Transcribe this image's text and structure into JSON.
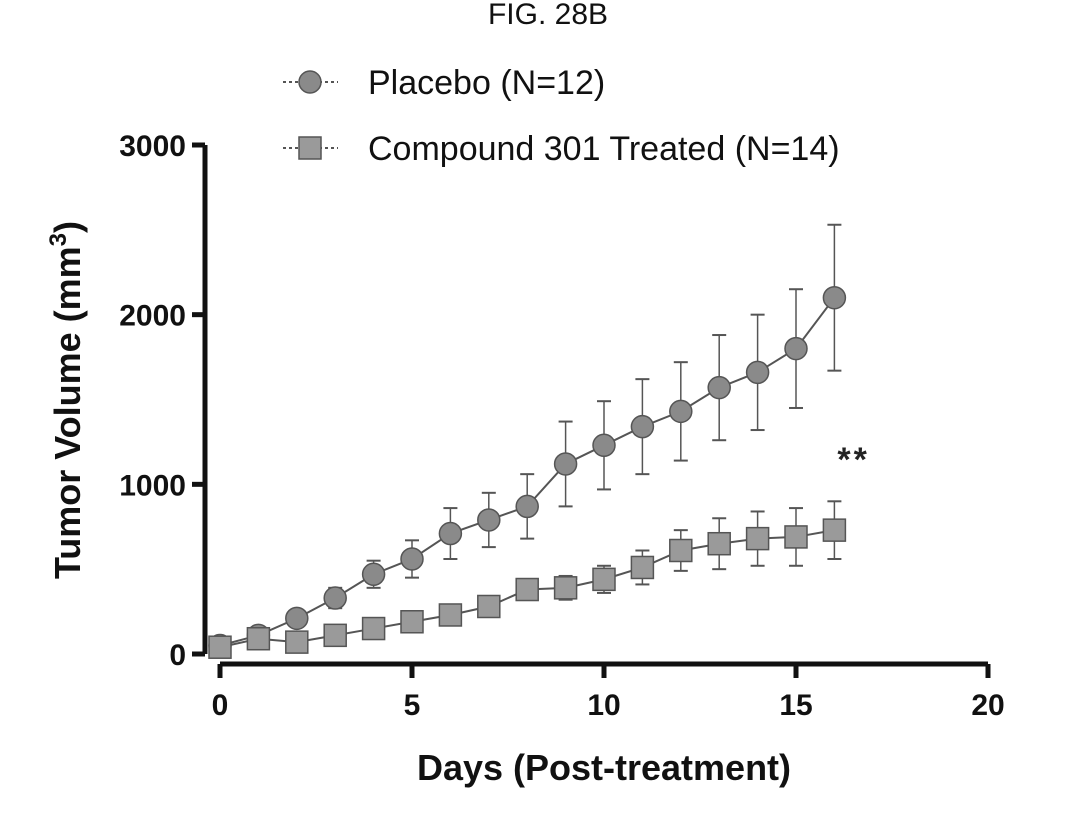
{
  "figure_title": "FIG. 28B",
  "chart_data": {
    "type": "line",
    "xlabel": "Days (Post-treatment)",
    "ylabel": "Tumor Volume (mm",
    "ylabel_superscript": "3",
    "ylabel_suffix": ")",
    "xlim": [
      0,
      20
    ],
    "ylim": [
      0,
      3000
    ],
    "xticks": [
      0,
      5,
      10,
      15,
      20
    ],
    "yticks": [
      0,
      1000,
      2000,
      3000
    ],
    "grid": false,
    "legend_position": "top",
    "series": [
      {
        "name": "Placebo (N=12)",
        "marker": "circle",
        "color": "#8a8a8a",
        "x": [
          0,
          1,
          2,
          3,
          4,
          5,
          6,
          7,
          8,
          9,
          10,
          11,
          12,
          13,
          14,
          15,
          16
        ],
        "y": [
          50,
          110,
          210,
          330,
          470,
          560,
          710,
          790,
          870,
          1120,
          1230,
          1340,
          1430,
          1570,
          1660,
          1800,
          2100
        ],
        "error": [
          20,
          30,
          40,
          60,
          80,
          110,
          150,
          160,
          190,
          250,
          260,
          280,
          290,
          310,
          340,
          350,
          430
        ]
      },
      {
        "name": "Compound 301 Treated  (N=14)",
        "marker": "square",
        "color": "#9a9a9a",
        "x": [
          0,
          1,
          2,
          3,
          4,
          5,
          6,
          7,
          8,
          9,
          10,
          11,
          12,
          13,
          14,
          15,
          16
        ],
        "y": [
          40,
          90,
          70,
          110,
          150,
          190,
          230,
          280,
          380,
          390,
          440,
          510,
          610,
          650,
          680,
          690,
          730
        ],
        "error": [
          15,
          20,
          20,
          30,
          30,
          40,
          40,
          50,
          60,
          70,
          80,
          100,
          120,
          150,
          160,
          170,
          170
        ]
      }
    ],
    "annotations": [
      {
        "text": "**",
        "x": 16.5,
        "y": 1150
      }
    ]
  }
}
